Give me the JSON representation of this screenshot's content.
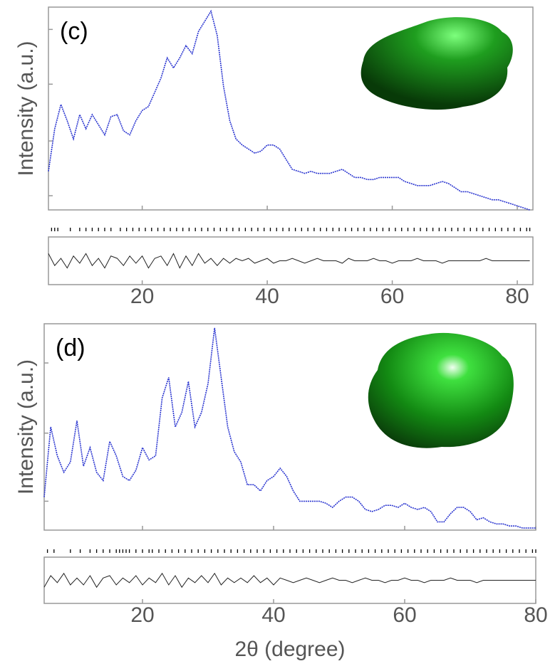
{
  "chart_data": [
    {
      "type": "line",
      "label": "(c)",
      "ylabel": "Intensity (a.u.)",
      "x": [
        5,
        6,
        7,
        8,
        9,
        10,
        11,
        12,
        13,
        14,
        15,
        16,
        17,
        18,
        19,
        20,
        21,
        22,
        23,
        24,
        25,
        26,
        27,
        28,
        29,
        30,
        31,
        32,
        33,
        34,
        35,
        36,
        37,
        38,
        39,
        40,
        41,
        42,
        43,
        44,
        45,
        46,
        47,
        48,
        49,
        50,
        51,
        52,
        53,
        54,
        55,
        56,
        57,
        58,
        59,
        60,
        61,
        62,
        63,
        64,
        65,
        66,
        67,
        68,
        69,
        70,
        71,
        72,
        73,
        74,
        75,
        76,
        77,
        78,
        79,
        80,
        81,
        82
      ],
      "values": [
        19,
        40,
        52,
        44,
        35,
        47,
        40,
        47,
        42,
        37,
        46,
        47,
        39,
        37,
        44,
        49,
        51,
        58,
        65,
        75,
        70,
        75,
        81,
        77,
        88,
        93,
        98,
        86,
        61,
        44,
        35,
        32,
        30,
        28,
        29,
        32,
        32,
        30,
        25,
        20,
        19,
        18,
        19,
        18,
        18,
        18,
        19,
        20,
        18,
        16,
        16,
        15,
        15,
        16,
        16,
        16,
        16,
        14,
        13,
        12,
        12,
        12,
        13,
        14,
        13,
        11,
        9,
        9,
        8,
        7,
        6,
        5,
        5,
        4,
        3,
        2,
        1,
        0
      ],
      "color": "#2a35d0",
      "xlim": [
        5,
        82.5
      ],
      "ylim": [
        0,
        100
      ],
      "xticks": [
        20,
        40,
        60,
        80
      ],
      "yticks": [
        7,
        34,
        62,
        89
      ],
      "difference": {
        "color": "#222222",
        "ylim": [
          -10,
          10
        ],
        "values": [
          3,
          -2,
          1,
          -3,
          2,
          -1,
          3,
          -2,
          1,
          -3,
          2,
          1,
          -2,
          2,
          -1,
          2,
          -3,
          1,
          2,
          -2,
          3,
          -3,
          2,
          -2,
          3,
          -1,
          1,
          -2,
          1,
          -1,
          1,
          0,
          1,
          -1,
          0,
          1,
          -1,
          0,
          0,
          1,
          0,
          -1,
          0,
          1,
          0,
          0,
          0,
          -1,
          1,
          0,
          0,
          0,
          1,
          0,
          0,
          -1,
          0,
          0,
          0,
          1,
          0,
          0,
          0,
          -1,
          0,
          0,
          0,
          0,
          0,
          0,
          1,
          0,
          0,
          0,
          0,
          0,
          0,
          0
        ]
      },
      "reflections": [
        5.5,
        6,
        6.5,
        8.5,
        10,
        11,
        12,
        13,
        14,
        15,
        16.5,
        17.5,
        18.5,
        19.5,
        20.5,
        21.5,
        22.5,
        23.5,
        24.5,
        25.5,
        26.5,
        27.5,
        28.5,
        29.5,
        30.5,
        31.5,
        32.5,
        33.5,
        34.5,
        35.5,
        36.5,
        37.5,
        38.5,
        39.5,
        40.5,
        41.5,
        42.5,
        43.5,
        44.5,
        45.5,
        46.5,
        47.5,
        48.5,
        49.5,
        50.5,
        51.5,
        52.5,
        53.5,
        54.5,
        55.5,
        56.5,
        57.5,
        58.5,
        59.5,
        60.5,
        61.5,
        62.5,
        63.5,
        64.5,
        65.5,
        66.5,
        67.5,
        68.5,
        69.5,
        70.5,
        71.5,
        72.5,
        73.5,
        74.5,
        75.5,
        76.5,
        77.5,
        78.5,
        79.5,
        80.5,
        81.5,
        82
      ]
    },
    {
      "type": "line",
      "label": "(d)",
      "ylabel": "Intensity (a.u.)",
      "xlabel": "2θ (degree)",
      "x": [
        5,
        6,
        7,
        8,
        9,
        10,
        11,
        12,
        13,
        14,
        15,
        16,
        17,
        18,
        19,
        20,
        21,
        22,
        23,
        24,
        25,
        26,
        27,
        28,
        29,
        30,
        31,
        32,
        33,
        34,
        35,
        36,
        37,
        38,
        39,
        40,
        41,
        42,
        43,
        44,
        45,
        46,
        47,
        48,
        49,
        50,
        51,
        52,
        53,
        54,
        55,
        56,
        57,
        58,
        59,
        60,
        61,
        62,
        63,
        64,
        65,
        66,
        67,
        68,
        69,
        70,
        71,
        72,
        73,
        74,
        75,
        76,
        77,
        78,
        79,
        80
      ],
      "values": [
        16,
        50,
        36,
        28,
        33,
        53,
        31,
        40,
        28,
        24,
        43,
        36,
        26,
        24,
        29,
        40,
        34,
        36,
        64,
        74,
        50,
        57,
        72,
        50,
        57,
        71,
        98,
        74,
        50,
        38,
        33,
        22,
        22,
        19,
        24,
        26,
        30,
        26,
        19,
        14,
        14,
        14,
        14,
        13,
        11,
        14,
        16,
        16,
        14,
        10,
        9,
        10,
        12,
        12,
        11,
        13,
        11,
        10,
        11,
        9,
        4,
        4,
        8,
        11,
        11,
        9,
        5,
        6,
        4,
        3,
        3,
        2,
        2,
        1,
        1,
        1
      ],
      "color": "#2a35d0",
      "xlim": [
        5,
        80
      ],
      "ylim": [
        0,
        100
      ],
      "xticks": [
        20,
        40,
        60,
        80
      ],
      "yticks": [
        14,
        47,
        81
      ],
      "difference": {
        "color": "#222222",
        "ylim": [
          -10,
          10
        ],
        "values": [
          -3,
          2,
          -1,
          3,
          -2,
          1,
          -2,
          2,
          -3,
          1,
          2,
          -2,
          1,
          -1,
          2,
          -2,
          1,
          -1,
          3,
          -2,
          2,
          -3,
          1,
          -1,
          2,
          -1,
          3,
          -2,
          1,
          -1,
          1,
          -1,
          2,
          -1,
          1,
          -2,
          1,
          0,
          -1,
          0,
          1,
          0,
          -1,
          0,
          1,
          0,
          0,
          -1,
          0,
          1,
          0,
          0,
          -1,
          0,
          0,
          1,
          0,
          0,
          -1,
          0,
          0,
          0,
          1,
          0,
          0,
          0,
          -1,
          0,
          0,
          0,
          0,
          0,
          0,
          0,
          0,
          0
        ]
      },
      "reflections": [
        5.5,
        6.5,
        9,
        10.5,
        12,
        13,
        14,
        15,
        16,
        16.5,
        17,
        17.5,
        18,
        19,
        20,
        21,
        21.5,
        22.5,
        23.5,
        24.5,
        25.5,
        26.5,
        27.5,
        28.5,
        29.5,
        30.5,
        31.5,
        32.5,
        33.5,
        34.5,
        35.5,
        36.5,
        37.5,
        38.5,
        39.5,
        40.5,
        41.5,
        42.5,
        43.5,
        44.5,
        45.5,
        46.5,
        47.5,
        48.5,
        49.5,
        50.5,
        51.5,
        52.5,
        53.5,
        54.5,
        55.5,
        56.5,
        57.5,
        58.5,
        59.5,
        60.5,
        61.5,
        62.5,
        63.5,
        64.5,
        65.5,
        66.5,
        67.5,
        68.5,
        69.5,
        70.5,
        71.5,
        72.5,
        73.5,
        74.5,
        75.5,
        76.5,
        77.5,
        78.5,
        79.5,
        80
      ]
    }
  ]
}
